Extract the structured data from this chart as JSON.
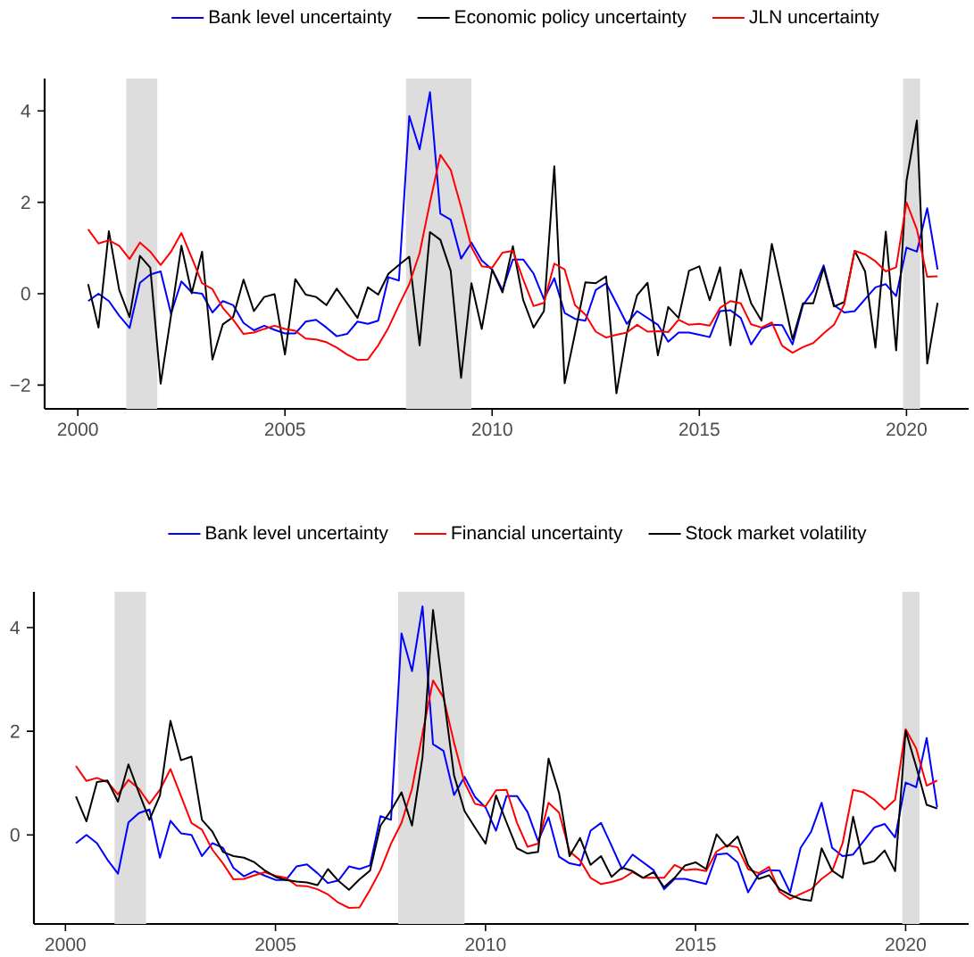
{
  "chart_data": [
    {
      "type": "line",
      "legend": "top",
      "line_style": "solid",
      "x": [
        2000.25,
        2000.5,
        2000.75,
        2001,
        2001.25,
        2001.5,
        2001.75,
        2002,
        2002.25,
        2002.5,
        2002.75,
        2003,
        2003.25,
        2003.5,
        2003.75,
        2004,
        2004.25,
        2004.5,
        2004.75,
        2005,
        2005.25,
        2005.5,
        2005.75,
        2006,
        2006.25,
        2006.5,
        2006.75,
        2007,
        2007.25,
        2007.5,
        2007.75,
        2008,
        2008.25,
        2008.5,
        2008.75,
        2009,
        2009.25,
        2009.5,
        2009.75,
        2010,
        2010.25,
        2010.5,
        2010.75,
        2011,
        2011.25,
        2011.5,
        2011.75,
        2012,
        2012.25,
        2012.5,
        2012.75,
        2013,
        2013.25,
        2013.5,
        2013.75,
        2014,
        2014.25,
        2014.5,
        2014.75,
        2015,
        2015.25,
        2015.5,
        2015.75,
        2016,
        2016.25,
        2016.5,
        2016.75,
        2017,
        2017.25,
        2017.5,
        2017.75,
        2018,
        2018.25,
        2018.5,
        2018.75,
        2019,
        2019.25,
        2019.5,
        2019.75,
        2020,
        2020.25,
        2020.5,
        2020.75
      ],
      "xlim": [
        1999.2,
        2021.5
      ],
      "ylim": [
        -2.52,
        4.71
      ],
      "xticks": [
        2000,
        2005,
        2010,
        2015,
        2020
      ],
      "yticks": [
        {
          "value": -2,
          "label": "−2"
        },
        0,
        2,
        4
      ],
      "bands": [
        {
          "axis": "x",
          "from": 2001.17,
          "to": 2001.92,
          "color": "#dddddd"
        },
        {
          "axis": "x",
          "from": 2007.92,
          "to": 2009.5,
          "color": "#dddddd"
        },
        {
          "axis": "x",
          "from": 2019.92,
          "to": 2020.33,
          "color": "#dddddd"
        }
      ],
      "series": [
        {
          "name": "Bank level uncertainty",
          "color": "#0000ff",
          "values": [
            -0.16,
            0.0,
            -0.16,
            -0.48,
            -0.75,
            0.24,
            0.42,
            0.49,
            -0.44,
            0.27,
            0.03,
            0.0,
            -0.41,
            -0.16,
            -0.25,
            -0.64,
            -0.8,
            -0.7,
            -0.79,
            -0.87,
            -0.87,
            -0.61,
            -0.57,
            -0.74,
            -0.93,
            -0.88,
            -0.61,
            -0.66,
            -0.59,
            0.36,
            0.29,
            3.89,
            3.16,
            4.41,
            1.75,
            1.62,
            0.77,
            1.12,
            0.73,
            0.53,
            0.08,
            0.75,
            0.75,
            0.44,
            -0.12,
            0.34,
            -0.42,
            -0.55,
            -0.59,
            0.08,
            0.23,
            -0.21,
            -0.66,
            -0.38,
            -0.53,
            -0.68,
            -1.05,
            -0.85,
            -0.85,
            -0.9,
            -0.95,
            -0.38,
            -0.36,
            -0.53,
            -1.11,
            -0.77,
            -0.68,
            -0.69,
            -1.11,
            -0.25,
            0.06,
            0.62,
            -0.25,
            -0.41,
            -0.38,
            -0.12,
            0.14,
            0.21,
            -0.05,
            1.01,
            0.92,
            1.87,
            0.53
          ]
        },
        {
          "name": "Economic policy uncertainty",
          "color": "#000000",
          "values": [
            0.21,
            -0.74,
            1.37,
            0.08,
            -0.51,
            0.83,
            0.57,
            -1.97,
            -0.48,
            1.05,
            0.01,
            0.92,
            -1.44,
            -0.67,
            -0.51,
            0.31,
            -0.38,
            -0.07,
            -0.01,
            -1.33,
            0.32,
            -0.02,
            -0.07,
            -0.25,
            0.11,
            -0.21,
            -0.53,
            0.14,
            -0.02,
            0.44,
            0.63,
            0.81,
            -1.13,
            1.35,
            1.18,
            0.5,
            -1.84,
            0.23,
            -0.77,
            0.53,
            0.03,
            1.04,
            -0.14,
            -0.74,
            -0.38,
            2.79,
            -1.96,
            -0.87,
            0.25,
            0.23,
            0.38,
            -2.18,
            -0.87,
            -0.03,
            0.24,
            -1.35,
            -0.29,
            -0.53,
            0.5,
            0.6,
            -0.14,
            0.58,
            -1.13,
            0.53,
            -0.21,
            -0.59,
            1.09,
            0.06,
            -1.0,
            -0.21,
            -0.21,
            0.57,
            -0.28,
            -0.18,
            0.94,
            0.49,
            -1.18,
            1.36,
            -1.24,
            2.47,
            3.79,
            -1.53,
            -0.2
          ]
        },
        {
          "name": "JLN uncertainty",
          "color": "#ff0000",
          "values": [
            1.41,
            1.1,
            1.17,
            1.05,
            0.76,
            1.12,
            0.92,
            0.63,
            0.92,
            1.33,
            0.79,
            0.23,
            0.1,
            -0.31,
            -0.57,
            -0.88,
            -0.85,
            -0.77,
            -0.7,
            -0.77,
            -0.81,
            -0.98,
            -1.0,
            -1.06,
            -1.18,
            -1.33,
            -1.45,
            -1.44,
            -1.13,
            -0.74,
            -0.25,
            0.21,
            0.89,
            2.0,
            3.04,
            2.71,
            1.9,
            1.02,
            0.6,
            0.57,
            0.9,
            0.94,
            0.31,
            -0.27,
            -0.2,
            0.66,
            0.53,
            -0.25,
            -0.46,
            -0.83,
            -0.96,
            -0.9,
            -0.85,
            -0.68,
            -0.83,
            -0.82,
            -0.84,
            -0.57,
            -0.68,
            -0.66,
            -0.7,
            -0.31,
            -0.16,
            -0.21,
            -0.67,
            -0.74,
            -0.63,
            -1.14,
            -1.29,
            -1.17,
            -1.08,
            -0.87,
            -0.68,
            -0.23,
            0.94,
            0.86,
            0.71,
            0.49,
            0.58,
            2.0,
            1.41,
            0.37,
            0.38
          ]
        }
      ]
    },
    {
      "type": "line",
      "legend": "top",
      "line_style": "solid",
      "x": [
        2000.25,
        2000.5,
        2000.75,
        2001,
        2001.25,
        2001.5,
        2001.75,
        2002,
        2002.25,
        2002.5,
        2002.75,
        2003,
        2003.25,
        2003.5,
        2003.75,
        2004,
        2004.25,
        2004.5,
        2004.75,
        2005,
        2005.25,
        2005.5,
        2005.75,
        2006,
        2006.25,
        2006.5,
        2006.75,
        2007,
        2007.25,
        2007.5,
        2007.75,
        2008,
        2008.25,
        2008.5,
        2008.75,
        2009,
        2009.25,
        2009.5,
        2009.75,
        2010,
        2010.25,
        2010.5,
        2010.75,
        2011,
        2011.25,
        2011.5,
        2011.75,
        2012,
        2012.25,
        2012.5,
        2012.75,
        2013,
        2013.25,
        2013.5,
        2013.75,
        2014,
        2014.25,
        2014.5,
        2014.75,
        2015,
        2015.25,
        2015.5,
        2015.75,
        2016,
        2016.25,
        2016.5,
        2016.75,
        2017,
        2017.25,
        2017.5,
        2017.75,
        2018,
        2018.25,
        2018.5,
        2018.75,
        2019,
        2019.25,
        2019.5,
        2019.75,
        2020,
        2020.25,
        2020.5,
        2020.75
      ],
      "xlim": [
        1999.25,
        2021.5
      ],
      "ylim": [
        -1.72,
        4.69
      ],
      "xticks": [
        2000,
        2005,
        2010,
        2015,
        2020
      ],
      "yticks": [
        0,
        2,
        4
      ],
      "bands": [
        {
          "axis": "x",
          "from": 2001.17,
          "to": 2001.92,
          "color": "#dddddd"
        },
        {
          "axis": "x",
          "from": 2007.92,
          "to": 2009.5,
          "color": "#dddddd"
        },
        {
          "axis": "x",
          "from": 2019.92,
          "to": 2020.33,
          "color": "#dddddd"
        }
      ],
      "series": [
        {
          "name": "Bank level uncertainty",
          "color": "#0000ff",
          "values": [
            -0.16,
            0.0,
            -0.16,
            -0.48,
            -0.75,
            0.24,
            0.42,
            0.49,
            -0.44,
            0.27,
            0.03,
            0.0,
            -0.41,
            -0.16,
            -0.25,
            -0.64,
            -0.8,
            -0.7,
            -0.79,
            -0.87,
            -0.87,
            -0.61,
            -0.57,
            -0.74,
            -0.93,
            -0.88,
            -0.61,
            -0.66,
            -0.59,
            0.36,
            0.29,
            3.89,
            3.16,
            4.41,
            1.75,
            1.62,
            0.77,
            1.12,
            0.73,
            0.53,
            0.08,
            0.75,
            0.75,
            0.44,
            -0.12,
            0.34,
            -0.42,
            -0.55,
            -0.59,
            0.08,
            0.23,
            -0.21,
            -0.66,
            -0.38,
            -0.53,
            -0.68,
            -1.05,
            -0.85,
            -0.85,
            -0.9,
            -0.95,
            -0.38,
            -0.36,
            -0.53,
            -1.11,
            -0.77,
            -0.68,
            -0.69,
            -1.11,
            -0.25,
            0.06,
            0.62,
            -0.25,
            -0.41,
            -0.38,
            -0.12,
            0.14,
            0.21,
            -0.05,
            1.01,
            0.92,
            1.87,
            0.53
          ]
        },
        {
          "name": "Financial uncertainty",
          "color": "#ff0000",
          "values": [
            1.33,
            1.04,
            1.1,
            1.02,
            0.78,
            1.06,
            0.89,
            0.6,
            0.87,
            1.27,
            0.75,
            0.23,
            0.1,
            -0.29,
            -0.55,
            -0.86,
            -0.85,
            -0.78,
            -0.72,
            -0.79,
            -0.83,
            -0.98,
            -0.99,
            -1.05,
            -1.15,
            -1.31,
            -1.41,
            -1.4,
            -1.06,
            -0.68,
            -0.17,
            0.23,
            0.89,
            1.96,
            2.98,
            2.65,
            1.78,
            1.01,
            0.6,
            0.55,
            0.86,
            0.87,
            0.23,
            -0.23,
            -0.17,
            0.62,
            0.43,
            -0.32,
            -0.49,
            -0.83,
            -0.95,
            -0.91,
            -0.85,
            -0.72,
            -0.83,
            -0.83,
            -0.83,
            -0.58,
            -0.68,
            -0.66,
            -0.7,
            -0.32,
            -0.2,
            -0.24,
            -0.66,
            -0.74,
            -0.62,
            -1.1,
            -1.24,
            -1.14,
            -1.05,
            -0.85,
            -0.7,
            -0.16,
            0.87,
            0.82,
            0.68,
            0.49,
            0.68,
            2.04,
            1.67,
            0.95,
            1.05
          ]
        },
        {
          "name": "Stock market volatility",
          "color": "#000000",
          "values": [
            0.74,
            0.26,
            1.02,
            1.05,
            0.64,
            1.36,
            0.81,
            0.29,
            0.76,
            2.2,
            1.44,
            1.51,
            0.29,
            0.06,
            -0.33,
            -0.41,
            -0.44,
            -0.53,
            -0.69,
            -0.81,
            -0.87,
            -0.9,
            -0.92,
            -0.97,
            -0.66,
            -0.89,
            -1.06,
            -0.86,
            -0.69,
            0.18,
            0.47,
            0.82,
            0.18,
            1.5,
            4.34,
            2.7,
            1.15,
            0.46,
            0.14,
            -0.17,
            0.76,
            0.24,
            -0.26,
            -0.36,
            -0.33,
            1.47,
            0.81,
            -0.41,
            -0.06,
            -0.58,
            -0.41,
            -0.81,
            -0.63,
            -0.7,
            -0.83,
            -0.72,
            -1.01,
            -0.83,
            -0.59,
            -0.53,
            -0.66,
            0.01,
            -0.23,
            -0.03,
            -0.58,
            -0.85,
            -0.78,
            -1.05,
            -1.16,
            -1.24,
            -1.27,
            -0.26,
            -0.69,
            -0.83,
            0.35,
            -0.56,
            -0.51,
            -0.3,
            -0.7,
            2.01,
            1.32,
            0.58,
            0.51
          ]
        }
      ]
    }
  ]
}
